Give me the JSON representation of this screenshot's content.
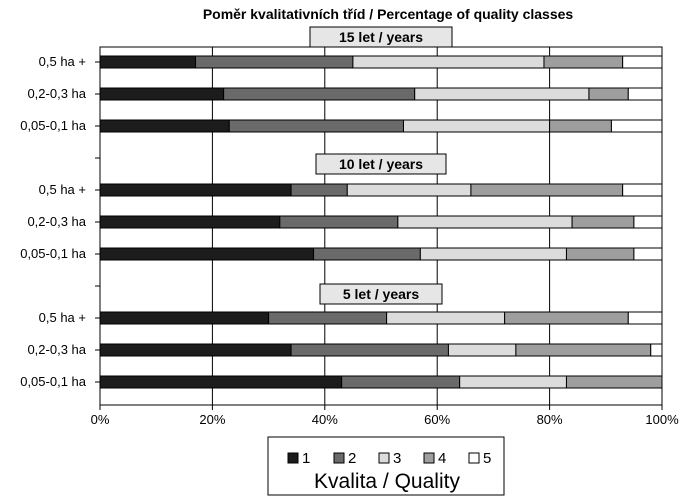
{
  "chart_data": {
    "type": "bar",
    "orientation": "horizontal",
    "stacked": true,
    "percent": true,
    "title": "Poměr kvalitativních tříd / Percentage of quality classes",
    "xlabel": "Kvalita / Quality",
    "xlim": [
      0,
      100
    ],
    "x_ticks": [
      "0%",
      "20%",
      "40%",
      "60%",
      "80%",
      "100%"
    ],
    "grid": "vertical",
    "legend_position": "bottom",
    "series": [
      {
        "name": "1",
        "color": "#1c1c1c"
      },
      {
        "name": "2",
        "color": "#6a6a6a"
      },
      {
        "name": "3",
        "color": "#dcdcdc"
      },
      {
        "name": "4",
        "color": "#9e9e9e"
      },
      {
        "name": "5",
        "color": "#ffffff"
      }
    ],
    "groups": [
      {
        "label": "15 let / years",
        "rows": [
          {
            "category": "0,5 ha +",
            "values": [
              17,
              28,
              34,
              14,
              7
            ]
          },
          {
            "category": "0,2-0,3 ha",
            "values": [
              22,
              34,
              31,
              7,
              6
            ]
          },
          {
            "category": "0,05-0,1 ha",
            "values": [
              23,
              31,
              26,
              11,
              9
            ]
          }
        ]
      },
      {
        "label": "10 let / years",
        "rows": [
          {
            "category": "0,5 ha +",
            "values": [
              34,
              10,
              22,
              27,
              7
            ]
          },
          {
            "category": "0,2-0,3 ha",
            "values": [
              32,
              21,
              31,
              11,
              5
            ]
          },
          {
            "category": "0,05-0,1 ha",
            "values": [
              38,
              19,
              26,
              12,
              5
            ]
          }
        ]
      },
      {
        "label": "5 let / years",
        "rows": [
          {
            "category": "0,5 ha +",
            "values": [
              30,
              21,
              21,
              22,
              6
            ]
          },
          {
            "category": "0,2-0,3 ha",
            "values": [
              34,
              28,
              12,
              24,
              2
            ]
          },
          {
            "category": "0,05-0,1 ha",
            "values": [
              43,
              21,
              19,
              17,
              0
            ]
          }
        ]
      }
    ]
  }
}
